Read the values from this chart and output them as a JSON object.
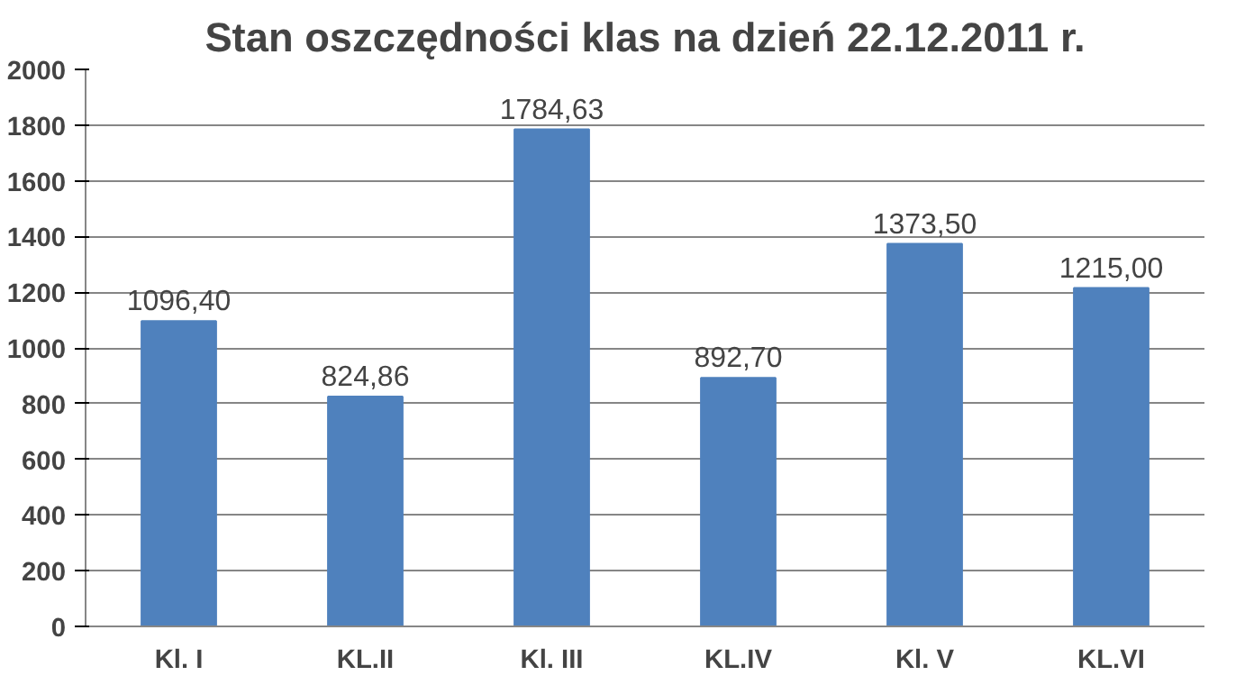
{
  "chart_data": {
    "type": "bar",
    "title": "Stan oszczędności klas na dzień 22.12.2011 r.",
    "categories": [
      "Kl. I",
      "KL.II",
      "Kl. III",
      "KL.IV",
      "Kl. V",
      "KL.VI"
    ],
    "values": [
      1096.4,
      824.86,
      1784.63,
      892.7,
      1373.5,
      1215.0
    ],
    "value_labels": [
      "1096,40",
      "824,86",
      "1784,63",
      "892,70",
      "1373,50",
      "1215,00"
    ],
    "color": "#4f81bd",
    "ylim": [
      0,
      2000
    ],
    "yticks": [
      0,
      200,
      400,
      600,
      800,
      1000,
      1200,
      1400,
      1600,
      1800,
      2000
    ],
    "grid": "y"
  }
}
